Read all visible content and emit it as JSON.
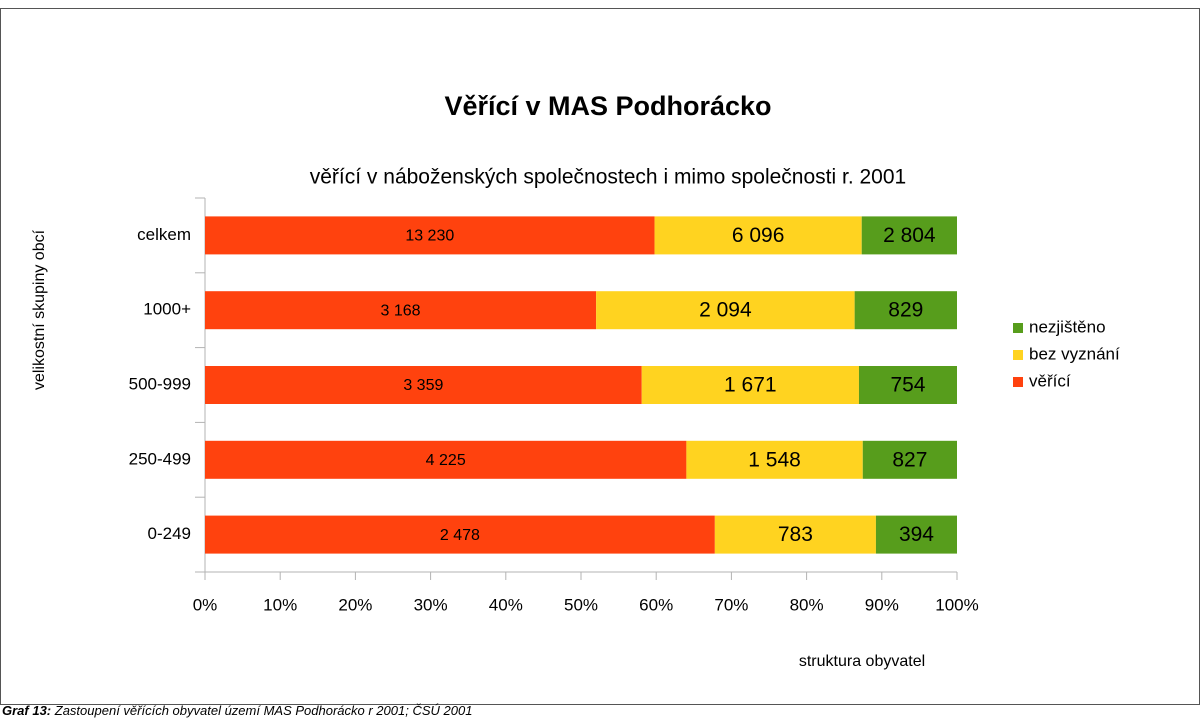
{
  "chart_data": {
    "type": "bar",
    "orientation": "horizontal",
    "stacking": "percent",
    "title": "Věřící v MAS Podhorácko",
    "subtitle": "věřící v náboženských společnostech i mimo společnosti r. 2001",
    "y_label": "velikostní skupiny obcí",
    "x_label": "struktura obyvatel",
    "categories": [
      "celkem",
      "1000+",
      "500-999",
      "250-499",
      "0-249"
    ],
    "series": [
      {
        "name": "věřící",
        "color": "#ff420e",
        "values": [
          13230,
          3168,
          3359,
          4225,
          2478
        ],
        "value_labels": [
          "13 230",
          "3 168",
          "3 359",
          "4 225",
          "2 478"
        ]
      },
      {
        "name": "bez vyznání",
        "color": "#ffd320",
        "values": [
          6096,
          2094,
          1671,
          1548,
          783
        ],
        "value_labels": [
          "6 096",
          "2 094",
          "1 671",
          "1 548",
          "783"
        ]
      },
      {
        "name": "nezjištěno",
        "color": "#579d1c",
        "values": [
          2804,
          829,
          754,
          827,
          394
        ],
        "value_labels": [
          "2 804",
          "829",
          "754",
          "827",
          "394"
        ]
      }
    ],
    "xlim": [
      0,
      100
    ],
    "xticks": [
      {
        "value": 0,
        "label": "0%"
      },
      {
        "value": 10,
        "label": "10%"
      },
      {
        "value": 20,
        "label": "20%"
      },
      {
        "value": 30,
        "label": "30%"
      },
      {
        "value": 40,
        "label": "40%"
      },
      {
        "value": 50,
        "label": "50%"
      },
      {
        "value": 60,
        "label": "60%"
      },
      {
        "value": 70,
        "label": "70%"
      },
      {
        "value": 80,
        "label": "80%"
      },
      {
        "value": 90,
        "label": "90%"
      },
      {
        "value": 100,
        "label": "100%"
      }
    ],
    "legend": "right",
    "grid": false
  },
  "caption": {
    "label": "Graf 13:",
    "text": "Zastoupení věřících obyvatel území MAS Podhorácko r 2001; ČSÚ 2001"
  }
}
